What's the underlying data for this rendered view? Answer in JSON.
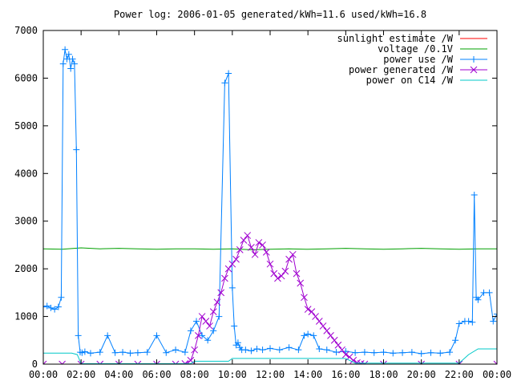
{
  "chart_data": {
    "type": "line",
    "title": "Power log: 2006-01-05 generated/kWh=11.6 used/kWh=16.8",
    "xlabel": "",
    "ylabel": "",
    "xlim": [
      0,
      24
    ],
    "ylim": [
      0,
      7000
    ],
    "x_ticks": [
      "00:00",
      "02:00",
      "04:00",
      "06:00",
      "08:00",
      "10:00",
      "12:00",
      "14:00",
      "16:00",
      "18:00",
      "20:00",
      "22:00",
      "00:00"
    ],
    "y_ticks": [
      "0",
      "1000",
      "2000",
      "3000",
      "4000",
      "5000",
      "6000",
      "7000"
    ],
    "grid": false,
    "legend_position": "top-right",
    "series": [
      {
        "name": "sunlight estimate /W",
        "color": "#ff0000",
        "style": "line",
        "x": [
          0,
          24
        ],
        "y": [
          0,
          0
        ]
      },
      {
        "name": "voltage /0.1V",
        "color": "#00a000",
        "style": "line",
        "x": [
          0,
          1,
          2,
          3,
          4,
          5,
          6,
          7,
          8,
          9,
          10,
          11,
          12,
          13,
          14,
          15,
          16,
          17,
          18,
          19,
          20,
          21,
          22,
          23,
          24
        ],
        "y": [
          2420,
          2410,
          2440,
          2420,
          2430,
          2420,
          2410,
          2420,
          2420,
          2410,
          2420,
          2400,
          2410,
          2420,
          2410,
          2420,
          2430,
          2420,
          2410,
          2420,
          2430,
          2420,
          2410,
          2420,
          2420
        ]
      },
      {
        "name": "power use /W",
        "color": "#0080ff",
        "style": "linespoints",
        "marker": "plus",
        "x": [
          0,
          0.2,
          0.4,
          0.6,
          0.8,
          0.95,
          1.05,
          1.15,
          1.25,
          1.35,
          1.45,
          1.55,
          1.65,
          1.75,
          1.85,
          1.95,
          2.05,
          2.2,
          2.5,
          3.0,
          3.4,
          3.8,
          4.2,
          4.6,
          5.0,
          5.5,
          6.0,
          6.5,
          7.0,
          7.5,
          7.8,
          8.1,
          8.4,
          8.7,
          9.0,
          9.3,
          9.6,
          9.8,
          10.0,
          10.1,
          10.2,
          10.3,
          10.4,
          10.5,
          10.7,
          11.0,
          11.3,
          11.6,
          12.0,
          12.5,
          13.0,
          13.5,
          13.8,
          14.0,
          14.3,
          14.6,
          15.0,
          15.5,
          16.0,
          16.5,
          17.0,
          17.5,
          18.0,
          18.5,
          19.0,
          19.5,
          20.0,
          20.5,
          21.0,
          21.5,
          21.8,
          22.0,
          22.3,
          22.5,
          22.7,
          22.8,
          22.9,
          23.0,
          23.3,
          23.6,
          23.8,
          24.0
        ],
        "y": [
          1200,
          1220,
          1180,
          1150,
          1200,
          1400,
          6300,
          6600,
          6400,
          6500,
          6200,
          6400,
          6300,
          4500,
          600,
          250,
          240,
          260,
          230,
          250,
          600,
          240,
          250,
          230,
          240,
          250,
          600,
          240,
          300,
          250,
          700,
          900,
          600,
          500,
          700,
          1000,
          5900,
          6100,
          1600,
          800,
          400,
          450,
          350,
          300,
          300,
          280,
          320,
          300,
          330,
          300,
          350,
          300,
          600,
          630,
          600,
          320,
          300,
          250,
          270,
          240,
          250,
          240,
          250,
          230,
          240,
          250,
          220,
          240,
          230,
          250,
          500,
          850,
          900,
          900,
          880,
          3550,
          1400,
          1350,
          1500,
          1500,
          900,
          1050
        ]
      },
      {
        "name": "power generated /W",
        "color": "#a000d0",
        "style": "linespoints",
        "marker": "cross",
        "x": [
          0,
          1,
          2,
          3,
          4,
          5,
          6,
          7,
          7.5,
          7.8,
          8.0,
          8.2,
          8.4,
          8.6,
          8.8,
          9.0,
          9.2,
          9.4,
          9.6,
          9.8,
          10.0,
          10.2,
          10.4,
          10.6,
          10.8,
          11.0,
          11.2,
          11.4,
          11.6,
          11.8,
          12.0,
          12.2,
          12.4,
          12.6,
          12.8,
          13.0,
          13.2,
          13.4,
          13.6,
          13.8,
          14.0,
          14.2,
          14.4,
          14.6,
          14.8,
          15.0,
          15.2,
          15.4,
          15.6,
          15.8,
          16.0,
          16.2,
          16.4,
          16.6,
          16.8,
          17.0,
          18,
          20,
          22,
          24
        ],
        "y": [
          0,
          0,
          0,
          0,
          0,
          0,
          0,
          0,
          10,
          80,
          300,
          600,
          1000,
          900,
          800,
          1100,
          1300,
          1500,
          1800,
          2000,
          2100,
          2200,
          2400,
          2600,
          2700,
          2450,
          2300,
          2550,
          2500,
          2350,
          2100,
          1900,
          1800,
          1850,
          1950,
          2200,
          2300,
          1900,
          1700,
          1400,
          1150,
          1100,
          1000,
          900,
          800,
          700,
          600,
          500,
          400,
          300,
          200,
          150,
          80,
          30,
          10,
          0,
          0,
          0,
          0,
          0
        ]
      },
      {
        "name": "power on C14 /W",
        "color": "#00c8c8",
        "style": "line",
        "x": [
          0,
          1.5,
          1.8,
          2.0,
          7.8,
          8.0,
          9.8,
          10.0,
          16.0,
          16.5,
          22.0,
          22.5,
          23.0,
          24.0
        ],
        "y": [
          230,
          230,
          200,
          10,
          10,
          60,
          60,
          120,
          120,
          20,
          20,
          200,
          320,
          320
        ]
      }
    ]
  }
}
